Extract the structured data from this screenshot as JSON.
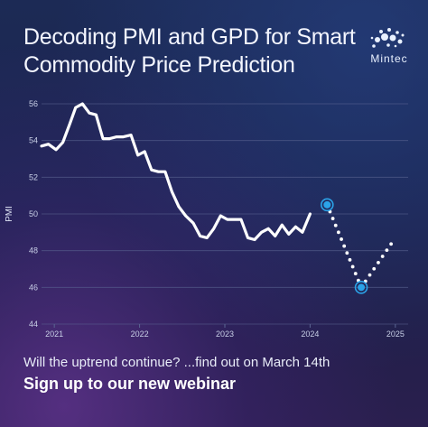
{
  "card": {
    "title_line1": "Decoding PMI and GPD for Smart",
    "title_line2": "Commodity Price Prediction",
    "brand": "Mintec",
    "footer_question": "Will the uptrend continue? ...find out on March 14th",
    "footer_cta": "Sign up to our new webinar"
  },
  "colors": {
    "line": "#ffffff",
    "marker": "#2ba3e8",
    "grid": "#5b6592",
    "tick": "#c8cfe6"
  },
  "chart_data": {
    "type": "line",
    "title": "Decoding PMI and GPD for Smart Commodity Price Prediction",
    "ylabel": "PMI",
    "xlabel": "",
    "ylim": [
      44,
      56
    ],
    "xlim": [
      2020.85,
      2025.15
    ],
    "yticks": [
      44,
      46,
      48,
      50,
      52,
      54,
      56
    ],
    "xticks": [
      2021,
      2022,
      2023,
      2024,
      2025
    ],
    "xtick_labels": [
      "2021",
      "2022",
      "2023",
      "2024",
      "2025"
    ],
    "grid": true,
    "series": [
      {
        "style": "solid",
        "x": [
          2020.85,
          2020.93,
          2021.02,
          2021.1,
          2021.18,
          2021.25,
          2021.33,
          2021.41,
          2021.49,
          2021.57,
          2021.65,
          2021.73,
          2021.81,
          2021.9,
          2021.98,
          2022.06,
          2022.14,
          2022.22,
          2022.3,
          2022.38,
          2022.46,
          2022.54,
          2022.63,
          2022.71,
          2022.79,
          2022.87,
          2022.95,
          2023.03,
          2023.11,
          2023.19,
          2023.27,
          2023.35,
          2023.43,
          2023.51,
          2023.59,
          2023.67,
          2023.75,
          2023.83,
          2023.91,
          2024.0
        ],
        "values": [
          53.7,
          53.8,
          53.5,
          53.9,
          54.9,
          55.8,
          56.0,
          55.5,
          55.4,
          54.1,
          54.1,
          54.2,
          54.2,
          54.3,
          53.2,
          53.4,
          52.4,
          52.3,
          52.3,
          51.2,
          50.4,
          49.9,
          49.5,
          48.8,
          48.7,
          49.2,
          49.9,
          49.7,
          49.7,
          49.7,
          48.7,
          48.6,
          49.0,
          49.2,
          48.8,
          49.4,
          48.9,
          49.3,
          49.0,
          50.0
        ]
      },
      {
        "style": "dotted",
        "x": [
          2024.2,
          2024.6,
          2025.0
        ],
        "values": [
          50.5,
          46.0,
          48.7
        ],
        "markers_at": [
          2024.2,
          2024.6
        ]
      }
    ]
  }
}
